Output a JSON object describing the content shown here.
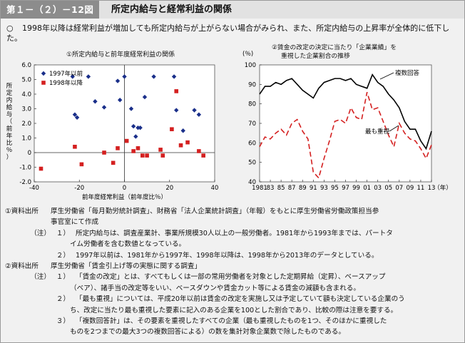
{
  "header": {
    "figure_number": "第１－（２）－12図",
    "title": "所定内給与と経常利益の関係"
  },
  "summary": {
    "mark": "○",
    "text": "1998年以降は経常利益が増加しても所定内給与が上がらない場合がみられ、また、所定内給与の上昇率が全体的に低下した。"
  },
  "chart_data": [
    {
      "type": "scatter",
      "title": "①所定内給与と前年度経常利益の関係",
      "xlabel": "前年度経常利益（前年度比％）",
      "ylabel": "所定内給与（前年比％）",
      "xlim": [
        -40,
        40
      ],
      "ylim": [
        -2.0,
        6.0
      ],
      "xticks": [
        "-40",
        "-20",
        "0",
        "20",
        "40"
      ],
      "yticks": [
        "6.0",
        "5.0",
        "4.0",
        "3.0",
        "2.0",
        "1.0",
        "0",
        "-1.0",
        "-2.0"
      ],
      "legend_position": "top-left",
      "series": [
        {
          "name": "1997年以前",
          "color": "#1a2f8a",
          "marker": "diamond",
          "points": [
            [
              -23,
              5.2
            ],
            [
              -16,
              5.2
            ],
            [
              -22,
              2.6
            ],
            [
              -21,
              2.4
            ],
            [
              -13,
              3.5
            ],
            [
              -9,
              3.1
            ],
            [
              -3,
              4.9
            ],
            [
              -2,
              3.6
            ],
            [
              0,
              5.2
            ],
            [
              3,
              3.0
            ],
            [
              4,
              1.8
            ],
            [
              5,
              1.1
            ],
            [
              6,
              1.7
            ],
            [
              7,
              1.7
            ],
            [
              9,
              3.8
            ],
            [
              13,
              5.2
            ],
            [
              22,
              5.2
            ],
            [
              23,
              2.9
            ],
            [
              26,
              1.5
            ],
            [
              31,
              2.9
            ],
            [
              33,
              2.6
            ]
          ]
        },
        {
          "name": "1998年以降",
          "color": "#d42020",
          "marker": "square",
          "points": [
            [
              -37,
              -1.1
            ],
            [
              -22,
              0.4
            ],
            [
              -19,
              -0.8
            ],
            [
              -9,
              0.0
            ],
            [
              -5,
              -0.7
            ],
            [
              -3,
              0.3
            ],
            [
              1,
              0.8
            ],
            [
              4,
              0.1
            ],
            [
              6,
              0.3
            ],
            [
              8,
              -0.2
            ],
            [
              10,
              -0.2
            ],
            [
              16,
              0.2
            ],
            [
              17,
              -0.2
            ],
            [
              21,
              1.6
            ],
            [
              23,
              4.2
            ],
            [
              25,
              0.5
            ],
            [
              28,
              0.7
            ],
            [
              33,
              0.1
            ],
            [
              35,
              -0.2
            ]
          ]
        }
      ]
    },
    {
      "type": "line",
      "title": "②賃金の改定の決定に当たり「企業業績」を重視した企業割合の推移",
      "ylabel": "(％)",
      "xlabel_suffix": "（年）",
      "x_first_label": "1981",
      "xlim": [
        1981,
        2013
      ],
      "ylim": [
        40,
        100
      ],
      "yticks": [
        "100",
        "90",
        "80",
        "70",
        "60",
        "50",
        "40"
      ],
      "xticks": [
        "1981",
        "83",
        "85",
        "87",
        "89",
        "91",
        "93",
        "95",
        "97",
        "99",
        "01",
        "03",
        "05",
        "07",
        "09",
        "11",
        "13"
      ],
      "x": [
        1981,
        1982,
        1983,
        1984,
        1985,
        1986,
        1987,
        1988,
        1989,
        1990,
        1991,
        1992,
        1993,
        1994,
        1995,
        1996,
        1997,
        1998,
        1999,
        2000,
        2001,
        2002,
        2003,
        2004,
        2005,
        2006,
        2007,
        2008,
        2009,
        2010,
        2011,
        2012,
        2013
      ],
      "series": [
        {
          "name": "複数回答",
          "color": "#000000",
          "style": "solid",
          "values": [
            85,
            89,
            89,
            91,
            90,
            92,
            93,
            90,
            87,
            85,
            83,
            88,
            91,
            92,
            93,
            93,
            92,
            93,
            90,
            89,
            88,
            95,
            91,
            89,
            85,
            82,
            78,
            71,
            67,
            67,
            61,
            57,
            66
          ]
        },
        {
          "name": "最も重視",
          "color": "#d42020",
          "style": "dashed",
          "values": [
            58,
            63,
            62,
            65,
            67,
            64,
            70,
            72,
            66,
            62,
            45,
            42,
            52,
            61,
            71,
            72,
            70,
            78,
            73,
            72,
            86,
            77,
            78,
            71,
            64,
            58,
            70,
            65,
            62,
            61,
            57,
            52,
            59
          ]
        }
      ]
    }
  ],
  "notes": [
    {
      "key": "①資料出所",
      "num": "",
      "text": "厚生労働省「毎月勤労統計調査」、財務省「法人企業統計調査」（年報）をもとに厚生労働省労働政策担当参",
      "cont": "事官室にて作成"
    },
    {
      "key": "（注）",
      "num": "１）",
      "text": "所定内給与は、調査産業計、事業所規模30人以上の一般労働者。1981年から1993年までは、パートタ",
      "cont": "イム労働者を含む数値となっている。"
    },
    {
      "key": "",
      "num": "２）",
      "text": "1997年以前は、1981年から1997年、1998年以降は、1998年から2013年のデータとしている。",
      "cont": ""
    },
    {
      "key": "②資料出所",
      "num": "",
      "text": "厚生労働省「賃金引上げ等の実態に関する調査」",
      "cont": ""
    },
    {
      "key": "（注）",
      "num": "１）",
      "text": "「賃金の改定」とは、すべてもしくは一部の常用労働者を対象とした定期昇給（定昇）、ベースアップ",
      "cont": "（ベア）、諸手当の改定等をいい、ベースダウンや賃金カット等による賃金の減額も含まれる。"
    },
    {
      "key": "",
      "num": "２）",
      "text": "「最も重視」については、平成20年以前は賃金の改定を実施し又は予定していて額も決定している企業のう",
      "cont": "ち、改定に当たり最も重視した要素に記入のある企業を100とした割合であり、比較の際は注意を要する。"
    },
    {
      "key": "",
      "num": "３）",
      "text": "「複数回答計」は、その要素を重視したすべての企業（最も重視したものを1つ、そのほかに重視した",
      "cont": "ものを2つまでの最大3つの複数回答による）の数を集計対象企業数で除したものである。"
    }
  ]
}
